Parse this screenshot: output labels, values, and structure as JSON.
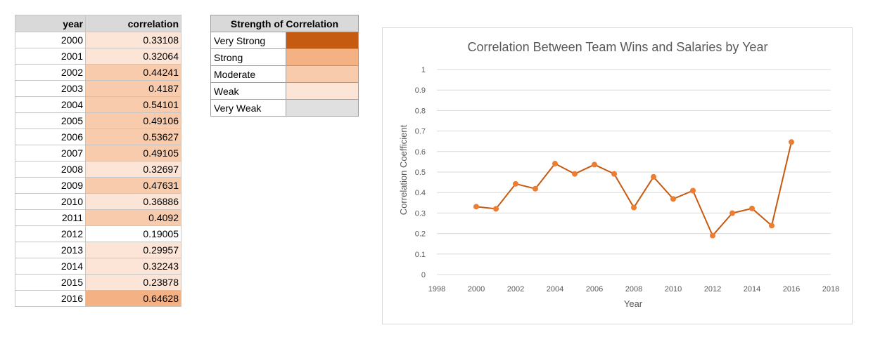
{
  "table": {
    "headers": {
      "year": "year",
      "correlation": "correlation"
    },
    "rows": [
      {
        "year": "2000",
        "correlation": "0.33108",
        "strength": "Weak"
      },
      {
        "year": "2001",
        "correlation": "0.32064",
        "strength": "Weak"
      },
      {
        "year": "2002",
        "correlation": "0.44241",
        "strength": "Moderate"
      },
      {
        "year": "2003",
        "correlation": "0.4187",
        "strength": "Moderate"
      },
      {
        "year": "2004",
        "correlation": "0.54101",
        "strength": "Moderate"
      },
      {
        "year": "2005",
        "correlation": "0.49106",
        "strength": "Moderate"
      },
      {
        "year": "2006",
        "correlation": "0.53627",
        "strength": "Moderate"
      },
      {
        "year": "2007",
        "correlation": "0.49105",
        "strength": "Moderate"
      },
      {
        "year": "2008",
        "correlation": "0.32697",
        "strength": "Weak"
      },
      {
        "year": "2009",
        "correlation": "0.47631",
        "strength": "Moderate"
      },
      {
        "year": "2010",
        "correlation": "0.36886",
        "strength": "Weak"
      },
      {
        "year": "2011",
        "correlation": "0.4092",
        "strength": "Moderate"
      },
      {
        "year": "2012",
        "correlation": "0.19005",
        "strength": "None"
      },
      {
        "year": "2013",
        "correlation": "0.29957",
        "strength": "Weak"
      },
      {
        "year": "2014",
        "correlation": "0.32243",
        "strength": "Weak"
      },
      {
        "year": "2015",
        "correlation": "0.23878",
        "strength": "Weak"
      },
      {
        "year": "2016",
        "correlation": "0.64628",
        "strength": "Strong"
      }
    ]
  },
  "legend": {
    "title": "Strength of Correlation",
    "items": [
      {
        "label": "Very Strong",
        "color": "#c55a11"
      },
      {
        "label": "Strong",
        "color": "#f4b183"
      },
      {
        "label": "Moderate",
        "color": "#f8cbad"
      },
      {
        "label": "Weak",
        "color": "#fce4d6"
      },
      {
        "label": "Very Weak",
        "color": "#e0e0e0"
      }
    ]
  },
  "colors": {
    "Strong": "#f4b183",
    "Moderate": "#f8cbad",
    "Weak": "#fce4d6",
    "None": "#ffffff",
    "line": "#c55a11",
    "marker": "#ed7d31",
    "grid": "#d9d9d9"
  },
  "chart_data": {
    "type": "line",
    "title": "Correlation Between Team Wins and Salaries by Year",
    "xlabel": "Year",
    "ylabel": "Correlation Coefficient",
    "xlim": [
      1998,
      2018
    ],
    "ylim": [
      0,
      1
    ],
    "x_ticks": [
      "1998",
      "2000",
      "2002",
      "2004",
      "2006",
      "2008",
      "2010",
      "2012",
      "2014",
      "2016",
      "2018"
    ],
    "y_ticks": [
      "0",
      "0.1",
      "0.2",
      "0.3",
      "0.4",
      "0.5",
      "0.6",
      "0.7",
      "0.8",
      "0.9",
      "1"
    ],
    "grid": true,
    "x": [
      2000,
      2001,
      2002,
      2003,
      2004,
      2005,
      2006,
      2007,
      2008,
      2009,
      2010,
      2011,
      2012,
      2013,
      2014,
      2015,
      2016
    ],
    "y": [
      0.33108,
      0.32064,
      0.44241,
      0.4187,
      0.54101,
      0.49106,
      0.53627,
      0.49105,
      0.32697,
      0.47631,
      0.36886,
      0.4092,
      0.19005,
      0.29957,
      0.32243,
      0.23878,
      0.64628
    ]
  }
}
